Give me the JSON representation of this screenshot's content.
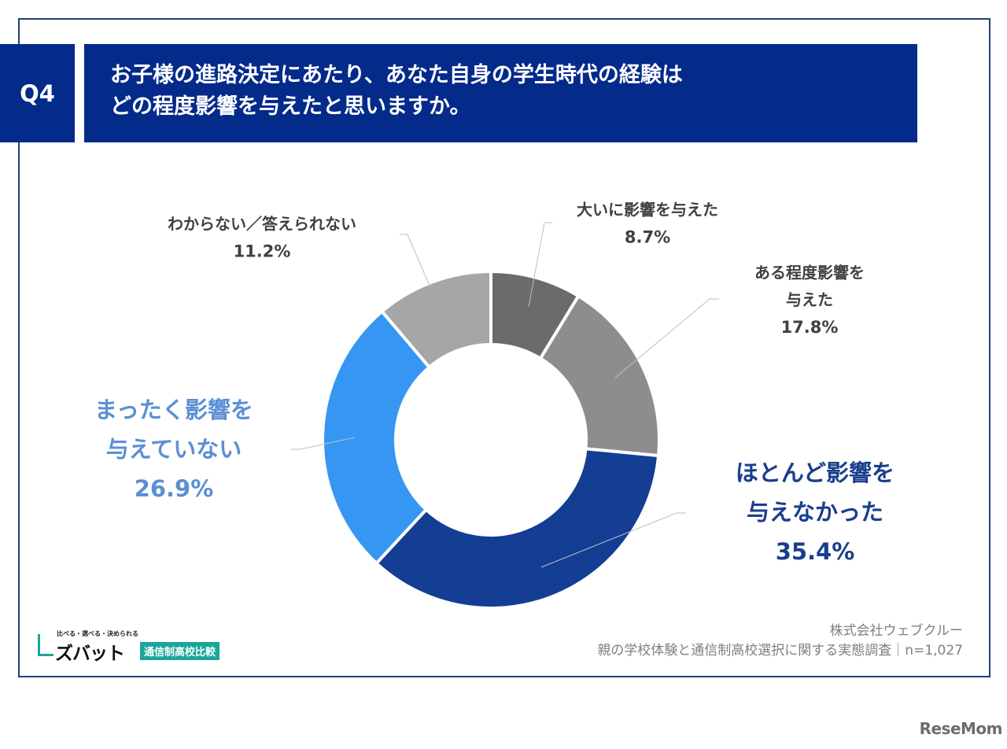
{
  "question": {
    "badge": "Q4",
    "line1": "お子様の進路決定にあたり、あなた自身の学生時代の経験は",
    "line2": "どの程度影響を与えたと思いますか。"
  },
  "chart_data": {
    "type": "pie",
    "style": "donut",
    "start_angle_deg": 0,
    "direction": "clockwise",
    "slices": [
      {
        "label_lines": [
          "大いに影響を与えた"
        ],
        "value": 8.7,
        "display": "8.7%",
        "color": "#6b6b6b",
        "label_color": "#404040"
      },
      {
        "label_lines": [
          "ある程度影響を",
          "与えた"
        ],
        "value": 17.8,
        "display": "17.8%",
        "color": "#8d8d8d",
        "label_color": "#404040"
      },
      {
        "label_lines": [
          "ほとんど影響を",
          "与えなかった"
        ],
        "value": 35.4,
        "display": "35.4%",
        "color": "#143d94",
        "label_color": "#1a3e8c"
      },
      {
        "label_lines": [
          "まったく影響を",
          "与えていない"
        ],
        "value": 26.9,
        "display": "26.9%",
        "color": "#3697f2",
        "label_color": "#5b8fd4"
      },
      {
        "label_lines": [
          "わからない／答えられない"
        ],
        "value": 11.2,
        "display": "11.2%",
        "color": "#a6a6a6",
        "label_color": "#404040"
      }
    ]
  },
  "footer": {
    "company": "株式会社ウェブクルー",
    "survey": "親の学校体験と通信制高校選択に関する実態調査｜n=1,027"
  },
  "logo": {
    "tagline": "比べる・選べる・決められる",
    "name": "ズバット",
    "tag": "通信制高校比較"
  },
  "watermark": "ReseMom"
}
